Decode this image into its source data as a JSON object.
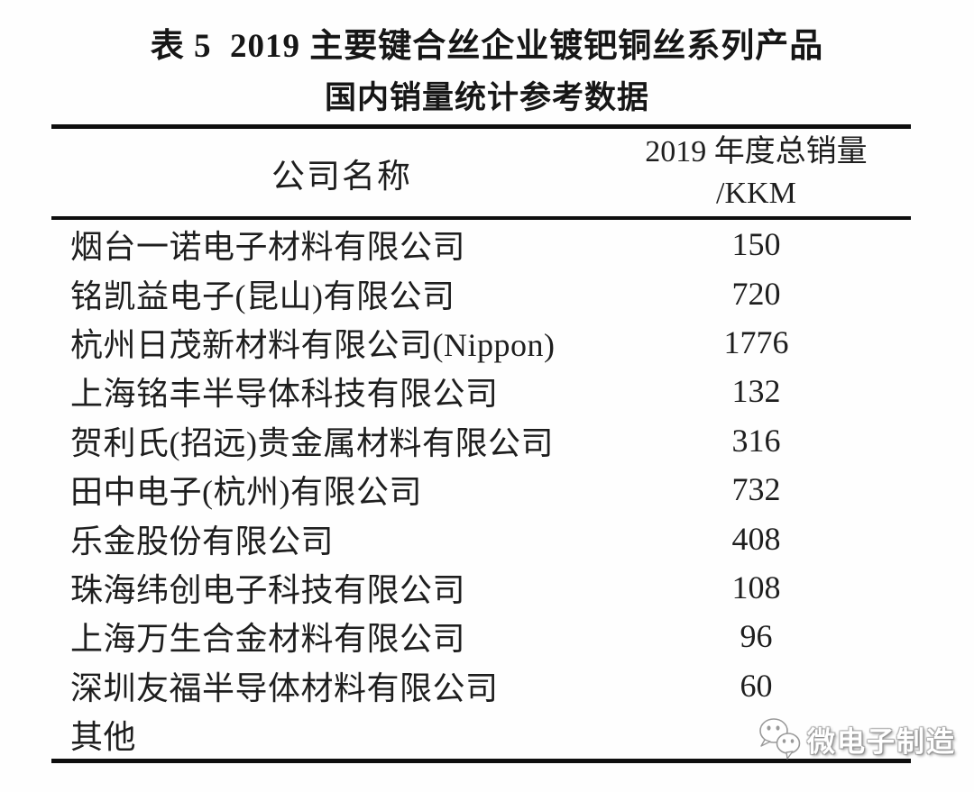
{
  "title": {
    "line1": "表 5  2019 主要键合丝企业镀钯铜丝系列产品",
    "line2": "国内销量统计参考数据"
  },
  "table": {
    "col1_header": "公司名称",
    "col2_header_line1": "2019 年度总销量",
    "col2_header_line2": "/KKM",
    "rows": [
      {
        "company": "烟台一诺电子材料有限公司",
        "sales": "150"
      },
      {
        "company": "铭凯益电子(昆山)有限公司",
        "sales": "720"
      },
      {
        "company": "杭州日茂新材料有限公司(Nippon)",
        "sales": "1776"
      },
      {
        "company": "上海铭丰半导体科技有限公司",
        "sales": "132"
      },
      {
        "company": "贺利氏(招远)贵金属材料有限公司",
        "sales": "316"
      },
      {
        "company": "田中电子(杭州)有限公司",
        "sales": "732"
      },
      {
        "company": "乐金股份有限公司",
        "sales": "408"
      },
      {
        "company": "珠海纬创电子科技有限公司",
        "sales": "108"
      },
      {
        "company": "上海万生合金材料有限公司",
        "sales": "96"
      },
      {
        "company": "深圳友福半导体材料有限公司",
        "sales": "60"
      },
      {
        "company": "其他",
        "sales": ""
      }
    ]
  },
  "watermark": {
    "label": "微电子制造",
    "icon": "wechat-icon"
  },
  "colors": {
    "text": "#1e1e1e",
    "rule": "#0e0e0e",
    "background": "#fefefe",
    "watermark_text": "#ffffff",
    "watermark_outline": "#9a9a9a"
  }
}
